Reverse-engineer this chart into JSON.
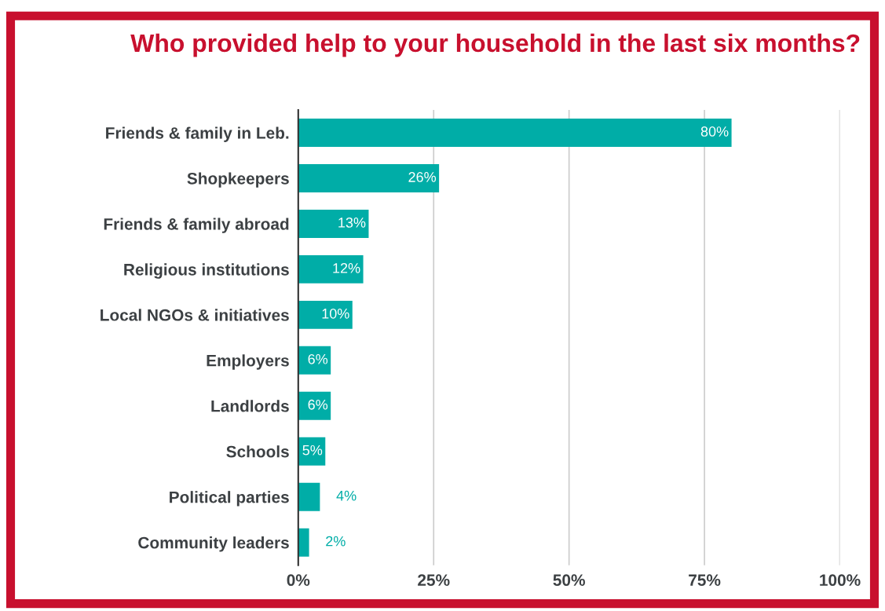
{
  "chart_data": {
    "type": "bar",
    "orientation": "horizontal",
    "title": "Who provided help to your household in the last six months?",
    "categories": [
      "Friends & family in Leb.",
      "Shopkeepers",
      "Friends & family abroad",
      "Religious institutions",
      "Local NGOs & initiatives",
      "Employers",
      "Landlords",
      "Schools",
      "Political parties",
      "Community leaders"
    ],
    "values": [
      80,
      26,
      13,
      12,
      10,
      6,
      6,
      5,
      4,
      2
    ],
    "value_labels": [
      "80%",
      "26%",
      "13%",
      "12%",
      "10%",
      "6%",
      "6%",
      "5%",
      "4%",
      "2%"
    ],
    "color": "#00ada7",
    "xlim": [
      0,
      100
    ],
    "xticks": [
      {
        "value": 0,
        "label": "0%"
      },
      {
        "value": 25,
        "label": "25%"
      },
      {
        "value": 50,
        "label": "50%"
      },
      {
        "value": 75,
        "label": "75%"
      },
      {
        "value": 100,
        "label": "100%"
      }
    ],
    "grid": "x",
    "legend": false
  }
}
